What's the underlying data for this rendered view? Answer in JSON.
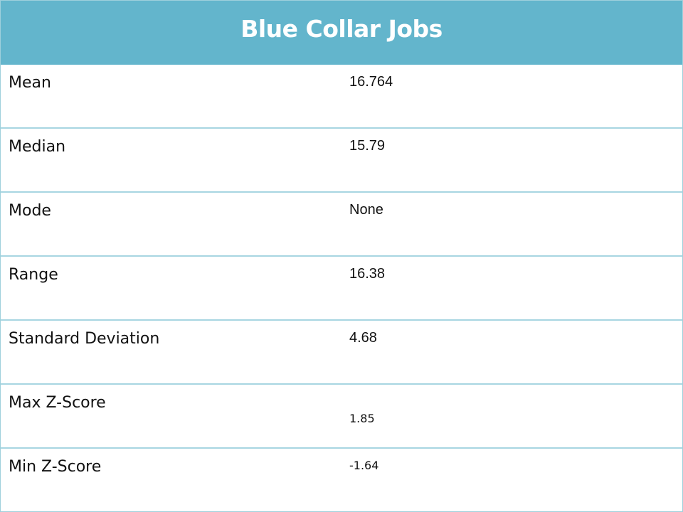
{
  "title": "Blue Collar Jobs",
  "rows": [
    {
      "label": "Mean",
      "value": "16.764"
    },
    {
      "label": "Median",
      "value": "15.79"
    },
    {
      "label": "Mode",
      "value": "None"
    },
    {
      "label": "Range",
      "value": "16.38"
    },
    {
      "label": "Standard Deviation",
      "value": "4.68"
    },
    {
      "label": "Max Z-Score",
      "value": "1.85"
    },
    {
      "label": "Min Z-Score",
      "value": "-1.64"
    }
  ]
}
